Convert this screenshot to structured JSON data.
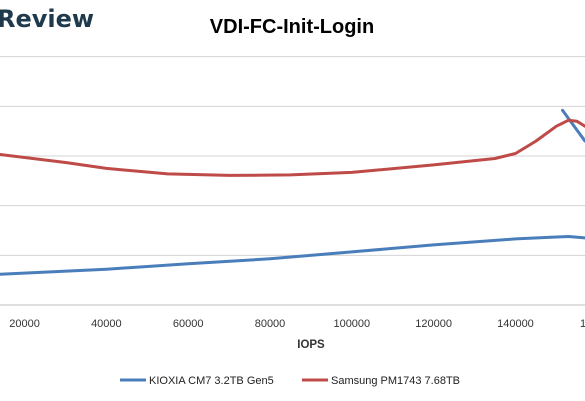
{
  "brand": {
    "text": "Review",
    "color": "#1f3a4d"
  },
  "chart_data": {
    "type": "line",
    "title": "VDI-FC-Init-Login",
    "xlabel": "IOPS",
    "ylabel": "",
    "xlim": [
      14000,
      157000
    ],
    "ylim": [
      0,
      6
    ],
    "x_ticks": [
      20000,
      40000,
      60000,
      80000,
      100000,
      120000,
      140000
    ],
    "x_tick_labels": [
      "20000",
      "40000",
      "60000",
      "80000",
      "100000",
      "120000",
      "140000"
    ],
    "edge_tick_label": "1",
    "y_gridlines": [
      1,
      2,
      3,
      4,
      5
    ],
    "grid": true,
    "legend_position": "bottom",
    "series": [
      {
        "name": "KIOXIA CM7 3.2TB Gen5",
        "color": "#4a7ebb",
        "x": [
          14000,
          40000,
          60000,
          80000,
          100000,
          120000,
          140000,
          150000,
          153000,
          157000
        ],
        "y": [
          0.62,
          0.72,
          0.83,
          0.93,
          1.07,
          1.21,
          1.33,
          1.37,
          1.38,
          1.35
        ]
      },
      {
        "name": "KIOXIA CM7 3.2TB Gen5",
        "color": "#4a7ebb",
        "x": [
          151500,
          157000
        ],
        "y": [
          3.92,
          3.3
        ]
      },
      {
        "name": "Samsung PM1743 7.68TB",
        "color": "#be4b48",
        "x": [
          14000,
          30000,
          40000,
          55000,
          70000,
          85000,
          100000,
          120000,
          135000,
          140000,
          145000,
          150000,
          153000,
          155000,
          157000
        ],
        "y": [
          3.03,
          2.87,
          2.75,
          2.64,
          2.61,
          2.62,
          2.67,
          2.82,
          2.95,
          3.05,
          3.3,
          3.6,
          3.72,
          3.7,
          3.6
        ]
      }
    ]
  }
}
